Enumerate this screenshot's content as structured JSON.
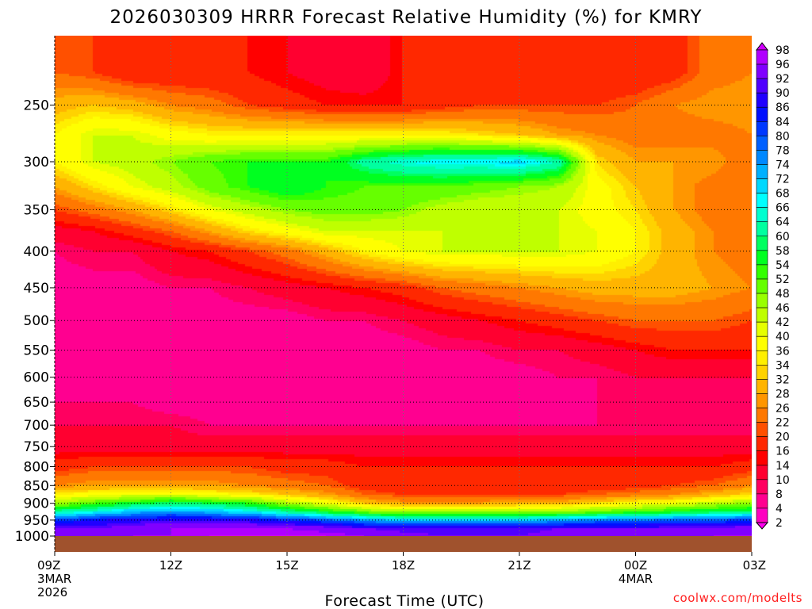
{
  "chart_data": {
    "type": "heatmap",
    "title": "2026030309 HRRR Forecast Relative Humidity (%) for KMRY",
    "xlabel": "Forecast Time (UTC)",
    "ylabel": "",
    "credit": "coolwx.com/modelts",
    "x_ticks": [
      {
        "hour": 0,
        "lines": [
          "09Z",
          "3MAR",
          "2026"
        ]
      },
      {
        "hour": 3,
        "lines": [
          "12Z"
        ]
      },
      {
        "hour": 6,
        "lines": [
          "15Z"
        ]
      },
      {
        "hour": 9,
        "lines": [
          "18Z"
        ]
      },
      {
        "hour": 12,
        "lines": [
          "21Z"
        ]
      },
      {
        "hour": 15,
        "lines": [
          "00Z",
          "4MAR"
        ]
      },
      {
        "hour": 18,
        "lines": [
          "03Z"
        ]
      }
    ],
    "xlim": [
      0,
      18
    ],
    "y_ticks": [
      250,
      300,
      350,
      400,
      450,
      500,
      550,
      600,
      650,
      700,
      750,
      800,
      850,
      900,
      950,
      1000
    ],
    "ylim": [
      200,
      1000
    ],
    "y_scale": "log-pressure",
    "surface_pressure": 1000,
    "grid": "dotted",
    "colorbar": {
      "levels": [
        2,
        4,
        8,
        10,
        14,
        16,
        20,
        22,
        26,
        28,
        32,
        34,
        36,
        40,
        42,
        46,
        48,
        52,
        54,
        58,
        60,
        64,
        66,
        68,
        72,
        74,
        78,
        80,
        84,
        86,
        90,
        92,
        96,
        98
      ],
      "colors": [
        "#ff00f0",
        "#ff00c0",
        "#ff0090",
        "#ff0060",
        "#ff0030",
        "#ff0000",
        "#ff2800",
        "#ff5000",
        "#ff7800",
        "#ff9600",
        "#ffb400",
        "#ffd200",
        "#ffef00",
        "#ffff00",
        "#e6ff00",
        "#bfff00",
        "#99ff00",
        "#66ff00",
        "#33ff00",
        "#00ff20",
        "#00ff60",
        "#00ffa0",
        "#00ffd0",
        "#00ffff",
        "#00d8ff",
        "#00b0ff",
        "#0088ff",
        "#0060ff",
        "#0038ff",
        "#0010ff",
        "#2000ff",
        "#5000ff",
        "#8000ff",
        "#b000ff",
        "#d000ff"
      ]
    },
    "x_hours": [
      0,
      1,
      2,
      3,
      4,
      5,
      6,
      7,
      8,
      9,
      10,
      11,
      12,
      13,
      14,
      15,
      16,
      17,
      18
    ],
    "levels_hpa": [
      225,
      250,
      275,
      300,
      325,
      350,
      375,
      400,
      450,
      500,
      550,
      600,
      650,
      700,
      750,
      800,
      850,
      875,
      900,
      925,
      950,
      975,
      1000
    ],
    "rh_percent": [
      [
        22,
        20,
        16,
        16,
        16,
        16,
        14,
        12,
        10,
        16,
        16,
        16,
        16,
        16,
        16,
        16,
        18,
        24,
        26
      ],
      [
        30,
        32,
        30,
        26,
        24,
        20,
        18,
        16,
        16,
        16,
        18,
        20,
        20,
        20,
        20,
        22,
        26,
        28,
        28
      ],
      [
        36,
        42,
        42,
        38,
        36,
        36,
        36,
        36,
        36,
        36,
        36,
        34,
        32,
        28,
        26,
        24,
        24,
        24,
        26
      ],
      [
        36,
        42,
        44,
        48,
        52,
        54,
        54,
        54,
        62,
        66,
        68,
        68,
        70,
        64,
        34,
        28,
        28,
        28,
        22
      ],
      [
        28,
        34,
        40,
        44,
        50,
        54,
        58,
        54,
        52,
        52,
        52,
        50,
        48,
        46,
        38,
        32,
        28,
        24,
        22
      ],
      [
        20,
        24,
        28,
        34,
        40,
        44,
        48,
        50,
        50,
        48,
        44,
        42,
        42,
        42,
        38,
        34,
        28,
        24,
        22
      ],
      [
        12,
        14,
        18,
        22,
        28,
        34,
        38,
        42,
        42,
        42,
        42,
        42,
        42,
        42,
        40,
        36,
        30,
        26,
        22
      ],
      [
        8,
        10,
        10,
        14,
        16,
        20,
        24,
        30,
        36,
        40,
        42,
        42,
        42,
        42,
        40,
        36,
        30,
        26,
        24
      ],
      [
        6,
        6,
        6,
        8,
        8,
        10,
        12,
        14,
        16,
        18,
        22,
        24,
        26,
        28,
        30,
        30,
        30,
        28,
        26
      ],
      [
        4,
        4,
        6,
        6,
        6,
        6,
        6,
        8,
        8,
        10,
        12,
        14,
        16,
        18,
        20,
        22,
        22,
        22,
        20
      ],
      [
        4,
        6,
        6,
        6,
        6,
        6,
        6,
        6,
        6,
        6,
        8,
        8,
        10,
        10,
        12,
        14,
        16,
        16,
        16
      ],
      [
        6,
        6,
        6,
        6,
        6,
        4,
        4,
        6,
        6,
        6,
        6,
        6,
        6,
        8,
        8,
        10,
        10,
        10,
        10
      ],
      [
        8,
        8,
        8,
        6,
        6,
        6,
        4,
        6,
        6,
        6,
        6,
        6,
        6,
        6,
        8,
        8,
        8,
        8,
        8
      ],
      [
        10,
        10,
        10,
        10,
        8,
        8,
        8,
        8,
        8,
        8,
        8,
        8,
        8,
        8,
        8,
        8,
        8,
        8,
        8
      ],
      [
        12,
        12,
        12,
        12,
        12,
        12,
        12,
        12,
        12,
        12,
        12,
        12,
        12,
        12,
        12,
        12,
        12,
        12,
        12
      ],
      [
        18,
        20,
        20,
        20,
        20,
        20,
        18,
        18,
        16,
        16,
        16,
        16,
        16,
        16,
        16,
        16,
        16,
        16,
        18
      ],
      [
        26,
        28,
        28,
        28,
        28,
        26,
        24,
        22,
        18,
        16,
        16,
        16,
        16,
        16,
        18,
        18,
        20,
        22,
        26
      ],
      [
        36,
        38,
        40,
        40,
        38,
        36,
        32,
        28,
        22,
        20,
        20,
        20,
        20,
        20,
        22,
        24,
        26,
        30,
        34
      ],
      [
        46,
        52,
        56,
        60,
        58,
        54,
        46,
        40,
        32,
        28,
        28,
        28,
        30,
        30,
        34,
        38,
        40,
        44,
        48
      ],
      [
        62,
        66,
        72,
        74,
        72,
        68,
        62,
        56,
        50,
        46,
        46,
        46,
        46,
        48,
        50,
        52,
        56,
        58,
        60
      ],
      [
        82,
        86,
        88,
        90,
        90,
        88,
        84,
        80,
        74,
        72,
        72,
        72,
        72,
        74,
        76,
        78,
        80,
        80,
        82
      ],
      [
        92,
        92,
        94,
        96,
        96,
        96,
        96,
        94,
        92,
        90,
        90,
        90,
        90,
        92,
        92,
        92,
        92,
        94,
        94
      ],
      [
        94,
        94,
        96,
        96,
        98,
        98,
        98,
        98,
        96,
        94,
        92,
        92,
        92,
        94,
        94,
        94,
        94,
        96,
        96
      ]
    ]
  }
}
